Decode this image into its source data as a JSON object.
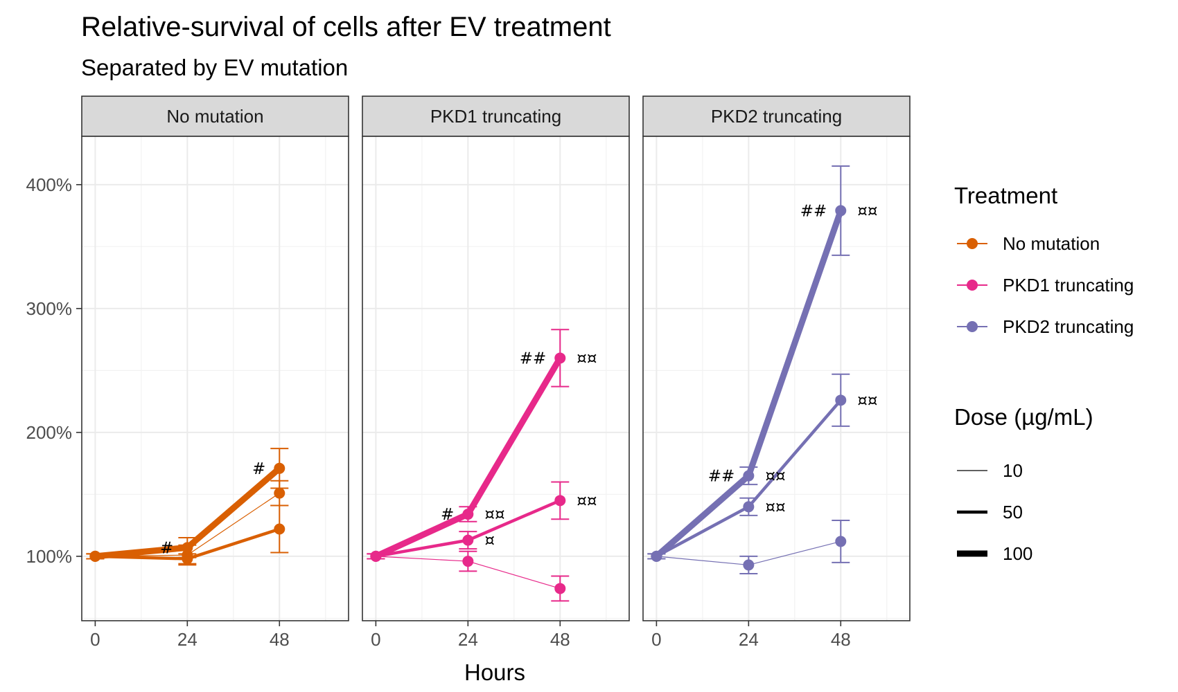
{
  "chart_data": {
    "type": "line",
    "title": "Relative-survival of cells after EV treatment",
    "subtitle": "Separated by EV mutation",
    "xlabel": "Hours",
    "ylabel": "",
    "x": [
      0,
      24,
      48
    ],
    "x_tick_labels": [
      "0",
      "24",
      "48"
    ],
    "xlim": [
      -3.5,
      66
    ],
    "ylim": [
      48,
      439
    ],
    "y_ticks": [
      100,
      200,
      300,
      400
    ],
    "y_tick_labels": [
      "100%",
      "200%",
      "300%",
      "400%"
    ],
    "grid": true,
    "facets": [
      "No mutation",
      "PKD1 truncating",
      "PKD2 truncating"
    ],
    "colors": {
      "No mutation": "#d95f02",
      "PKD1 truncating": "#e7298a",
      "PKD2 truncating": "#7570b3"
    },
    "series": [
      {
        "facet": "No mutation",
        "treatment": "No mutation",
        "dose": 10,
        "values": [
          100,
          101,
          151
        ],
        "err": [
          2,
          8,
          10
        ]
      },
      {
        "facet": "No mutation",
        "treatment": "No mutation",
        "dose": 50,
        "values": [
          100,
          98,
          122
        ],
        "err": [
          2,
          4,
          19
        ]
      },
      {
        "facet": "No mutation",
        "treatment": "No mutation",
        "dose": 100,
        "values": [
          100,
          107,
          171
        ],
        "err": [
          2,
          8,
          16
        ]
      },
      {
        "facet": "PKD1 truncating",
        "treatment": "PKD1 truncating",
        "dose": 10,
        "values": [
          100,
          96,
          74
        ],
        "err": [
          2,
          8,
          10
        ]
      },
      {
        "facet": "PKD1 truncating",
        "treatment": "PKD1 truncating",
        "dose": 50,
        "values": [
          100,
          113,
          145
        ],
        "err": [
          2,
          7,
          15
        ]
      },
      {
        "facet": "PKD1 truncating",
        "treatment": "PKD1 truncating",
        "dose": 100,
        "values": [
          100,
          134,
          260
        ],
        "err": [
          2,
          6,
          23
        ]
      },
      {
        "facet": "PKD2 truncating",
        "treatment": "PKD2 truncating",
        "dose": 10,
        "values": [
          100,
          93,
          112
        ],
        "err": [
          2,
          7,
          17
        ]
      },
      {
        "facet": "PKD2 truncating",
        "treatment": "PKD2 truncating",
        "dose": 50,
        "values": [
          100,
          140,
          226
        ],
        "err": [
          2,
          7,
          21
        ]
      },
      {
        "facet": "PKD2 truncating",
        "treatment": "PKD2 truncating",
        "dose": 100,
        "values": [
          100,
          165,
          379
        ],
        "err": [
          2,
          7,
          36
        ]
      }
    ],
    "annotations": [
      {
        "facet": "No mutation",
        "x": 48,
        "y": 171,
        "text": "#",
        "side": "left"
      },
      {
        "facet": "No mutation",
        "x": 24,
        "y": 107,
        "text": "#",
        "side": "left"
      },
      {
        "facet": "PKD1 truncating",
        "x": 48,
        "y": 260,
        "text": "##",
        "side": "left"
      },
      {
        "facet": "PKD1 truncating",
        "x": 48,
        "y": 260,
        "text": "¤¤",
        "side": "right"
      },
      {
        "facet": "PKD1 truncating",
        "x": 48,
        "y": 145,
        "text": "¤¤",
        "side": "right"
      },
      {
        "facet": "PKD1 truncating",
        "x": 24,
        "y": 134,
        "text": "#",
        "side": "left"
      },
      {
        "facet": "PKD1 truncating",
        "x": 24,
        "y": 134,
        "text": "¤¤",
        "side": "right"
      },
      {
        "facet": "PKD1 truncating",
        "x": 24,
        "y": 113,
        "text": "¤",
        "side": "right"
      },
      {
        "facet": "PKD2 truncating",
        "x": 48,
        "y": 379,
        "text": "##",
        "side": "left"
      },
      {
        "facet": "PKD2 truncating",
        "x": 48,
        "y": 379,
        "text": "¤¤",
        "side": "right"
      },
      {
        "facet": "PKD2 truncating",
        "x": 48,
        "y": 226,
        "text": "¤¤",
        "side": "right"
      },
      {
        "facet": "PKD2 truncating",
        "x": 24,
        "y": 165,
        "text": "##",
        "side": "left"
      },
      {
        "facet": "PKD2 truncating",
        "x": 24,
        "y": 165,
        "text": "¤¤",
        "side": "right"
      },
      {
        "facet": "PKD2 truncating",
        "x": 24,
        "y": 140,
        "text": "¤¤",
        "side": "right"
      }
    ],
    "legend": {
      "position": "right",
      "treatment_title": "Treatment",
      "treatment_items": [
        "No mutation",
        "PKD1 truncating",
        "PKD2 truncating"
      ],
      "dose_title": "Dose (µg/mL)",
      "dose_items": [
        "10",
        "50",
        "100"
      ]
    }
  }
}
